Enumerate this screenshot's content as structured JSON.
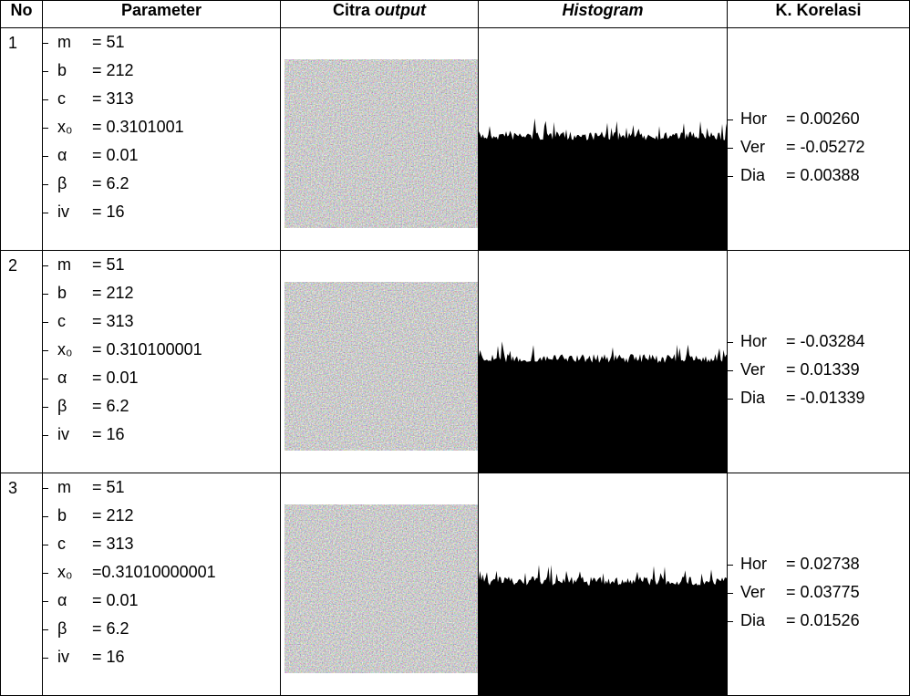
{
  "header": [
    "No",
    "Parameter",
    [
      "Citra",
      "output"
    ],
    "Histogram",
    "K. Korelasi"
  ],
  "rows": [
    {
      "no": "1",
      "params": [
        {
          "name": "m",
          "value": "= 51"
        },
        {
          "name": "b",
          "value": "= 212"
        },
        {
          "name": "c",
          "value": "= 313"
        },
        {
          "name": "x₀",
          "value": "= 0.3101001"
        },
        {
          "name": "α",
          "value": "= 0.01"
        },
        {
          "name": "β",
          "value": "= 6.2"
        },
        {
          "name": "iv",
          "value": "= 16"
        }
      ],
      "correlation": [
        {
          "name": "Hor",
          "value": "= 0.00260"
        },
        {
          "name": "Ver",
          "value": "= -0.05272"
        },
        {
          "name": "Dia",
          "value": "= 0.00388"
        }
      ]
    },
    {
      "no": "2",
      "params": [
        {
          "name": "m",
          "value": "= 51"
        },
        {
          "name": "b",
          "value": "= 212"
        },
        {
          "name": "c",
          "value": "= 313"
        },
        {
          "name": "x₀",
          "value": "= 0.310100001"
        },
        {
          "name": "α",
          "value": "= 0.01"
        },
        {
          "name": "β",
          "value": "= 6.2"
        },
        {
          "name": "iv",
          "value": "= 16"
        }
      ],
      "correlation": [
        {
          "name": "Hor",
          "value": "= -0.03284"
        },
        {
          "name": "Ver",
          "value": "= 0.01339"
        },
        {
          "name": "Dia",
          "value": "= -0.01339"
        }
      ]
    },
    {
      "no": "3",
      "params": [
        {
          "name": "m",
          "value": "= 51"
        },
        {
          "name": "b",
          "value": "= 212"
        },
        {
          "name": "c",
          "value": "= 313"
        },
        {
          "name": "x₀",
          "value": "=0.31010000001"
        },
        {
          "name": "α",
          "value": "= 0.01"
        },
        {
          "name": "β",
          "value": "= 6.2"
        },
        {
          "name": "iv",
          "value": "= 16"
        }
      ],
      "correlation": [
        {
          "name": "Hor",
          "value": "= 0.02738"
        },
        {
          "name": "Ver",
          "value": "= 0.03775"
        },
        {
          "name": "Dia",
          "value": "= 0.01526"
        }
      ]
    }
  ]
}
